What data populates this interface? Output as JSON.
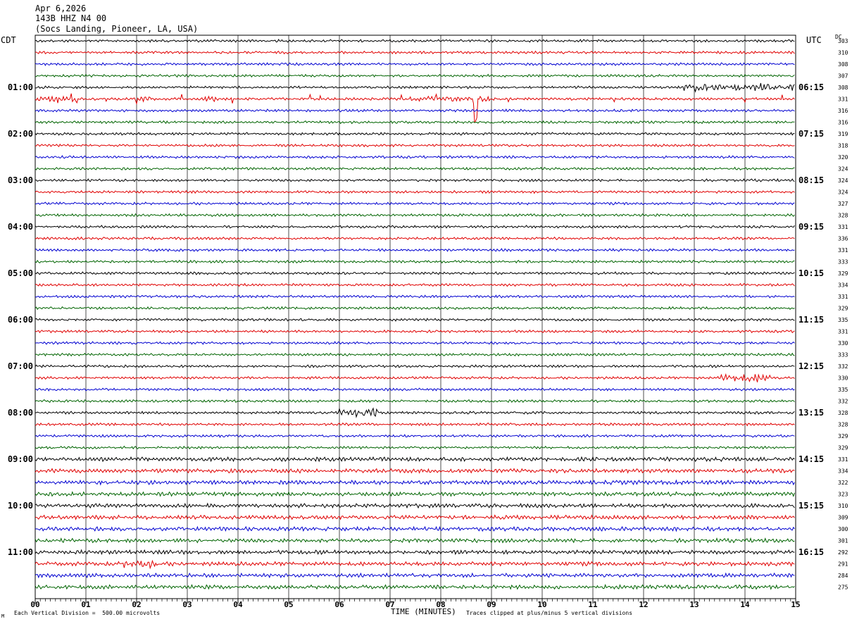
{
  "header": {
    "date": "Apr 6,2026",
    "station": "143B HHZ N4 00",
    "location": "(Socs Landing, Pioneer, LA, USA)"
  },
  "timezones": {
    "left": "CDT",
    "right": "UTC",
    "dc": "DC"
  },
  "footer": {
    "scale": "Each Vertical Division =  500.00 microvolts",
    "xtitle": "TIME (MINUTES)",
    "clip": "Traces clipped at plus/minus 5 vertical divisions",
    "mark": "M"
  },
  "colors": {
    "trace_cycle": [
      "#000000",
      "#e00000",
      "#0000d0",
      "#006400"
    ],
    "grid": "#000000"
  },
  "chart_data": {
    "type": "line",
    "title": "143B HHZ N4 00",
    "xlabel": "TIME (MINUTES)",
    "xlim": [
      0,
      15
    ],
    "x_ticks": [
      "00",
      "01",
      "02",
      "03",
      "04",
      "05",
      "06",
      "07",
      "08",
      "09",
      "10",
      "11",
      "12",
      "13",
      "14",
      "15"
    ],
    "rows_per_hour": 4,
    "left_hour_labels": [
      "01:00",
      "02:00",
      "03:00",
      "04:00",
      "05:00",
      "06:00",
      "07:00",
      "08:00",
      "09:00",
      "10:00",
      "11:00"
    ],
    "right_hour_labels": [
      "06:15",
      "07:15",
      "08:15",
      "09:15",
      "10:15",
      "11:15",
      "12:15",
      "13:15",
      "14:15",
      "15:15",
      "16:15"
    ],
    "dc_values": [
      "303",
      "310",
      "308",
      "307",
      "308",
      "331",
      "316",
      "316",
      "319",
      "318",
      "320",
      "324",
      "324",
      "324",
      "327",
      "328",
      "331",
      "336",
      "331",
      "333",
      "329",
      "334",
      "331",
      "329",
      "335",
      "331",
      "330",
      "333",
      "332",
      "330",
      "335",
      "332",
      "328",
      "328",
      "329",
      "329",
      "331",
      "334",
      "322",
      "323",
      "310",
      "309",
      "300",
      "301",
      "292",
      "291",
      "284",
      "275"
    ],
    "grid": true,
    "events": [
      {
        "row": 4,
        "start_min": 12.8,
        "end_min": 15.0,
        "level": "elevated"
      },
      {
        "row": 5,
        "start_min": 0.0,
        "end_min": 0.8,
        "level": "spiky"
      },
      {
        "row": 5,
        "start_min": 1.9,
        "end_min": 2.3,
        "level": "spiky"
      },
      {
        "row": 5,
        "start_min": 3.2,
        "end_min": 3.6,
        "level": "spiky"
      },
      {
        "row": 5,
        "start_min": 7.4,
        "end_min": 9.0,
        "level": "spiky"
      },
      {
        "row": 5,
        "start_min": 8.65,
        "end_min": 8.72,
        "level": "spike-down"
      },
      {
        "row": 29,
        "start_min": 13.5,
        "end_min": 14.5,
        "level": "burst"
      },
      {
        "row": 32,
        "start_min": 6.0,
        "end_min": 6.8,
        "level": "burst"
      },
      {
        "row": 45,
        "start_min": 1.7,
        "end_min": 2.4,
        "level": "burst"
      }
    ]
  }
}
